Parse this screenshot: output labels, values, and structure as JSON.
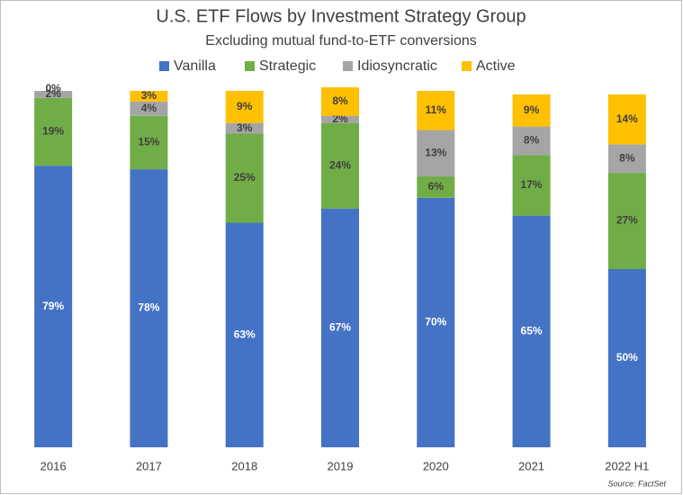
{
  "chart_data": {
    "type": "stacked-bar",
    "title": "U.S. ETF Flows by Investment Strategy Group",
    "subtitle": "Excluding mutual fund-to-ETF conversions",
    "source": "Source: FactSet",
    "categories": [
      "2016",
      "2017",
      "2018",
      "2019",
      "2020",
      "2021",
      "2022 H1"
    ],
    "ylim": [
      0,
      100
    ],
    "legend": "top",
    "series": [
      {
        "name": "Vanilla",
        "color": "#4472c4",
        "values": [
          79,
          78,
          63,
          67,
          70,
          65,
          50
        ],
        "value_labels": [
          "79%",
          "78%",
          "63%",
          "67%",
          "70%",
          "65%",
          "50%"
        ]
      },
      {
        "name": "Strategic",
        "color": "#70ad47",
        "values": [
          19,
          15,
          25,
          24,
          6,
          17,
          27
        ],
        "value_labels": [
          "19%",
          "15%",
          "25%",
          "24%",
          "6%",
          "17%",
          "27%"
        ]
      },
      {
        "name": "Idiosyncratic",
        "color": "#a5a5a5",
        "values": [
          2,
          4,
          3,
          2,
          13,
          8,
          8
        ],
        "value_labels": [
          "2%",
          "4%",
          "3%",
          "2%",
          "13%",
          "8%",
          "8%"
        ]
      },
      {
        "name": "Active",
        "color": "#ffc000",
        "values": [
          0,
          3,
          9,
          8,
          11,
          9,
          14
        ],
        "value_labels": [
          "0%",
          "3%",
          "9%",
          "8%",
          "11%",
          "9%",
          "14%"
        ]
      }
    ]
  }
}
